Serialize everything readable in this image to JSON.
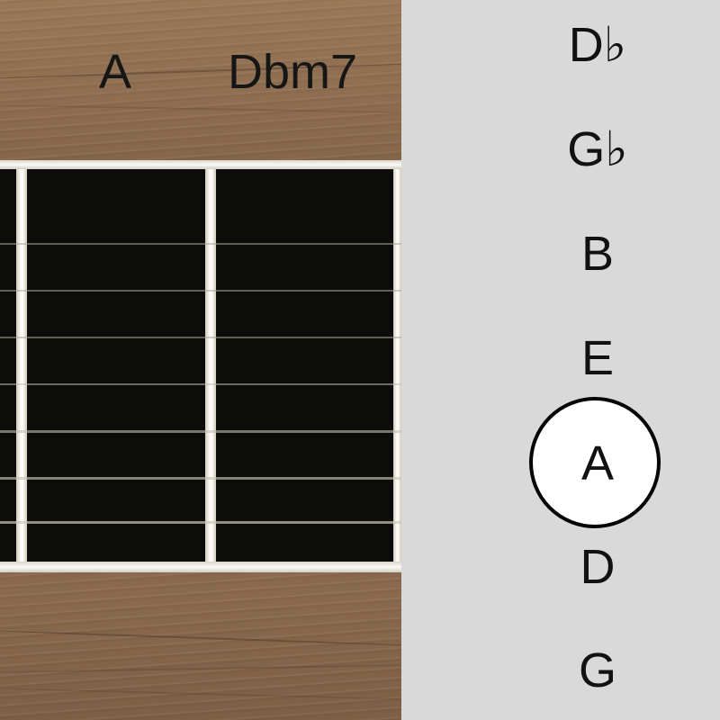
{
  "chords": {
    "left_label": "A",
    "right_label": "Dbm7"
  },
  "tuning": {
    "notes": [
      "D♭",
      "G♭",
      "B",
      "E",
      "A",
      "D",
      "G"
    ],
    "highlighted_note": "A",
    "highlight_color": "#ffffff"
  },
  "colors": {
    "panel_background": "#d9d9d9",
    "fretboard": "#0c0c0b",
    "fret": "#fffefa",
    "text": "#111111"
  }
}
